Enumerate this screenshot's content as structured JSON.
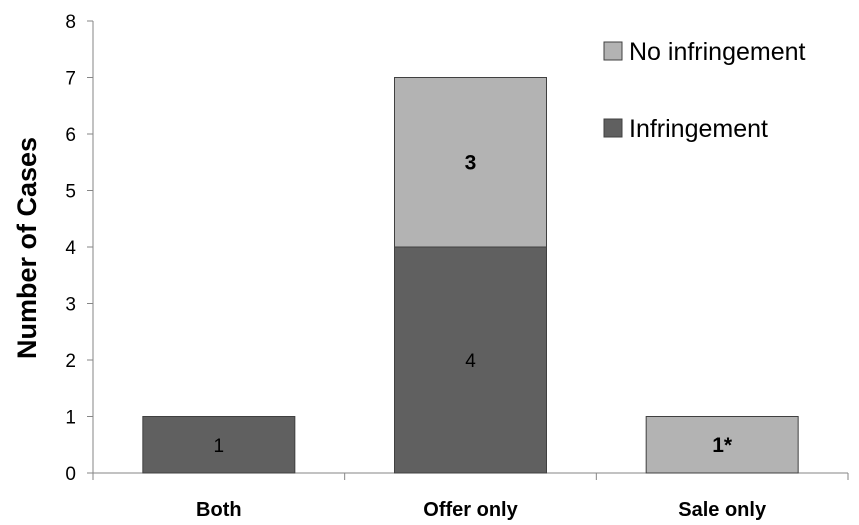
{
  "chart_data": {
    "type": "bar",
    "stacked": true,
    "categories": [
      "Both",
      "Offer only",
      "Sale only"
    ],
    "series": [
      {
        "name": "Infringement",
        "color": "#606060",
        "values": [
          1,
          4,
          0
        ],
        "labels": [
          "1",
          "4",
          ""
        ],
        "label_bold": [
          false,
          false,
          false
        ]
      },
      {
        "name": "No infringement",
        "color": "#b3b3b3",
        "values": [
          0,
          3,
          1
        ],
        "labels": [
          "",
          "3",
          "1*"
        ],
        "label_bold": [
          false,
          true,
          true
        ]
      }
    ],
    "ylabel": "Number of Cases",
    "ylim": [
      0,
      8
    ],
    "yticks": [
      0,
      1,
      2,
      3,
      4,
      5,
      6,
      7,
      8
    ],
    "grid": false,
    "legend_position": "top-right"
  }
}
